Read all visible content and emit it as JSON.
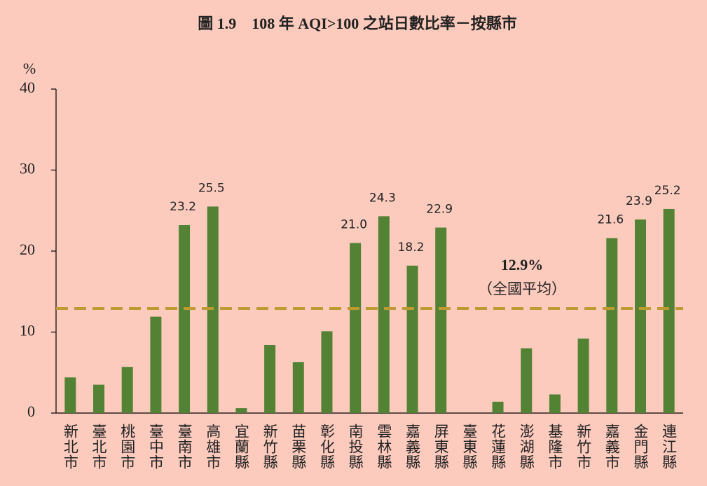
{
  "chart_data": {
    "type": "bar",
    "title": "圖 1.9　108 年 AQI>100 之站日數比率－按縣市",
    "y_label": "%",
    "categories": [
      "新北市",
      "臺北市",
      "桃園市",
      "臺中市",
      "臺南市",
      "高雄市",
      "宜蘭縣",
      "新竹縣",
      "苗栗縣",
      "彰化縣",
      "南投縣",
      "雲林縣",
      "嘉義縣",
      "屏東縣",
      "臺東縣",
      "花蓮縣",
      "澎湖縣",
      "基隆市",
      "新竹市",
      "嘉義市",
      "金門縣",
      "連江縣"
    ],
    "values": [
      4.4,
      3.5,
      5.7,
      11.9,
      23.2,
      25.5,
      0.6,
      8.4,
      6.3,
      10.1,
      21.0,
      24.3,
      18.2,
      22.9,
      0,
      1.4,
      8.0,
      2.3,
      9.2,
      21.6,
      23.9,
      25.2
    ],
    "value_labels": [
      null,
      null,
      null,
      null,
      "23.2",
      "25.5",
      null,
      null,
      null,
      null,
      "21.0",
      "24.3",
      "18.2",
      "22.9",
      null,
      null,
      null,
      null,
      null,
      "21.6",
      "23.9",
      "25.2"
    ],
    "color": "#548235",
    "ylim": [
      0,
      40
    ],
    "yticks": [
      0,
      10,
      20,
      30,
      40
    ],
    "reference_line": {
      "value": 12.9,
      "label": "12.9%",
      "caption": "（全國平均）",
      "color": "#bf9a30"
    }
  }
}
